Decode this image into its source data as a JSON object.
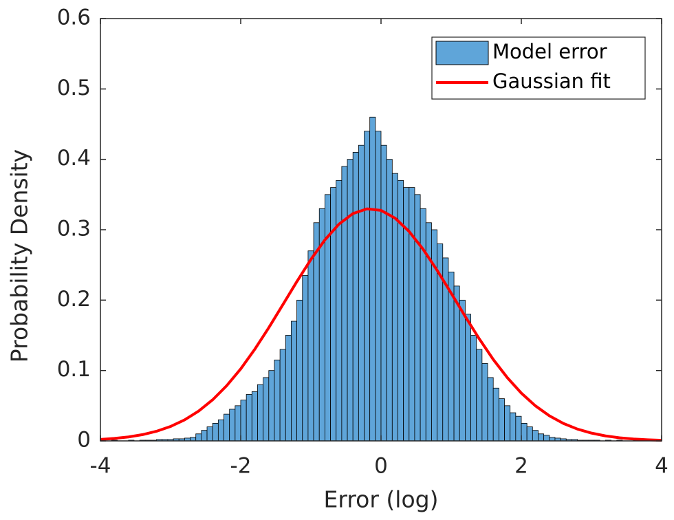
{
  "chart_data": {
    "type": "histogram",
    "xlabel": "Error (log)",
    "ylabel": "Probability Density",
    "xlim": [
      -4,
      4
    ],
    "ylim": [
      0,
      0.6
    ],
    "xticks": [
      -4,
      -2,
      0,
      2,
      4
    ],
    "yticks": [
      0,
      0.1,
      0.2,
      0.3,
      0.4,
      0.5,
      0.6
    ],
    "legend": "upper right",
    "bins": [
      -4,
      -3.92,
      -3.84,
      -3.76,
      -3.68,
      -3.6,
      -3.52,
      -3.44,
      -3.36,
      -3.28,
      -3.2,
      -3.12,
      -3.04,
      -2.96,
      -2.88,
      -2.8,
      -2.72,
      -2.64,
      -2.56,
      -2.48,
      -2.4,
      -2.32,
      -2.24,
      -2.16,
      -2.08,
      -2,
      -1.92,
      -1.84,
      -1.76,
      -1.68,
      -1.6,
      -1.52,
      -1.44,
      -1.36,
      -1.28,
      -1.2,
      -1.12,
      -1.04,
      -0.96,
      -0.88,
      -0.8,
      -0.72,
      -0.64,
      -0.56,
      -0.48,
      -0.4,
      -0.32,
      -0.24,
      -0.16,
      -0.08,
      0,
      0.08,
      0.16,
      0.24,
      0.32,
      0.4,
      0.48,
      0.56,
      0.64,
      0.72,
      0.8,
      0.88,
      0.96,
      1.04,
      1.12,
      1.2,
      1.28,
      1.36,
      1.44,
      1.52,
      1.6,
      1.68,
      1.76,
      1.84,
      1.92,
      2,
      2.08,
      2.16,
      2.24,
      2.32,
      2.4,
      2.48,
      2.56,
      2.64,
      2.72,
      2.8,
      2.88,
      2.96,
      3.04,
      3.12,
      3.2,
      3.28,
      3.36,
      3.44,
      3.52,
      3.6,
      3.68,
      3.76,
      3.84,
      3.92,
      4
    ],
    "series": [
      {
        "name": "Model error",
        "type": "histogram",
        "color": "#5fa5d9",
        "values": [
          0,
          0,
          0.001,
          0,
          0,
          0.001,
          0,
          0.001,
          0.001,
          0.001,
          0.002,
          0.002,
          0.002,
          0.003,
          0.003,
          0.004,
          0.005,
          0.01,
          0.015,
          0.02,
          0.025,
          0.03,
          0.038,
          0.045,
          0.05,
          0.058,
          0.066,
          0.07,
          0.08,
          0.09,
          0.1,
          0.115,
          0.13,
          0.15,
          0.17,
          0.2,
          0.235,
          0.27,
          0.31,
          0.33,
          0.35,
          0.36,
          0.37,
          0.39,
          0.4,
          0.41,
          0.42,
          0.44,
          0.46,
          0.44,
          0.42,
          0.4,
          0.38,
          0.37,
          0.36,
          0.36,
          0.35,
          0.33,
          0.31,
          0.3,
          0.28,
          0.26,
          0.24,
          0.22,
          0.2,
          0.18,
          0.15,
          0.13,
          0.11,
          0.09,
          0.075,
          0.06,
          0.05,
          0.04,
          0.035,
          0.025,
          0.02,
          0.015,
          0.01,
          0.008,
          0.005,
          0.004,
          0.003,
          0.002,
          0.002,
          0.001,
          0.001,
          0.001,
          0.001,
          0,
          0.001,
          0,
          0.001,
          0,
          0,
          0.001,
          0,
          0,
          0,
          0
        ]
      },
      {
        "name": "Gaussian fit",
        "type": "line",
        "color": "#ff0000",
        "x": [
          -4,
          -3.8,
          -3.6,
          -3.4,
          -3.2,
          -3,
          -2.8,
          -2.6,
          -2.4,
          -2.2,
          -2,
          -1.8,
          -1.6,
          -1.4,
          -1.2,
          -1,
          -0.8,
          -0.6,
          -0.4,
          -0.2,
          0,
          0.2,
          0.4,
          0.6,
          0.8,
          1,
          1.2,
          1.4,
          1.6,
          1.8,
          2,
          2.2,
          2.4,
          2.6,
          2.8,
          3,
          3.2,
          3.4,
          3.6,
          3.8,
          4
        ],
        "values": [
          0.0021,
          0.0035,
          0.0056,
          0.0089,
          0.0137,
          0.0205,
          0.0299,
          0.0423,
          0.0584,
          0.0784,
          0.1023,
          0.1301,
          0.1608,
          0.1934,
          0.2263,
          0.2577,
          0.2856,
          0.3079,
          0.323,
          0.3297,
          0.3275,
          0.3165,
          0.2976,
          0.2723,
          0.2423,
          0.2099,
          0.1769,
          0.1451,
          0.1157,
          0.0899,
          0.0679,
          0.0499,
          0.0357,
          0.0248,
          0.0168,
          0.0111,
          0.0071,
          0.0044,
          0.0027,
          0.0016,
          0.0009
        ]
      }
    ]
  }
}
